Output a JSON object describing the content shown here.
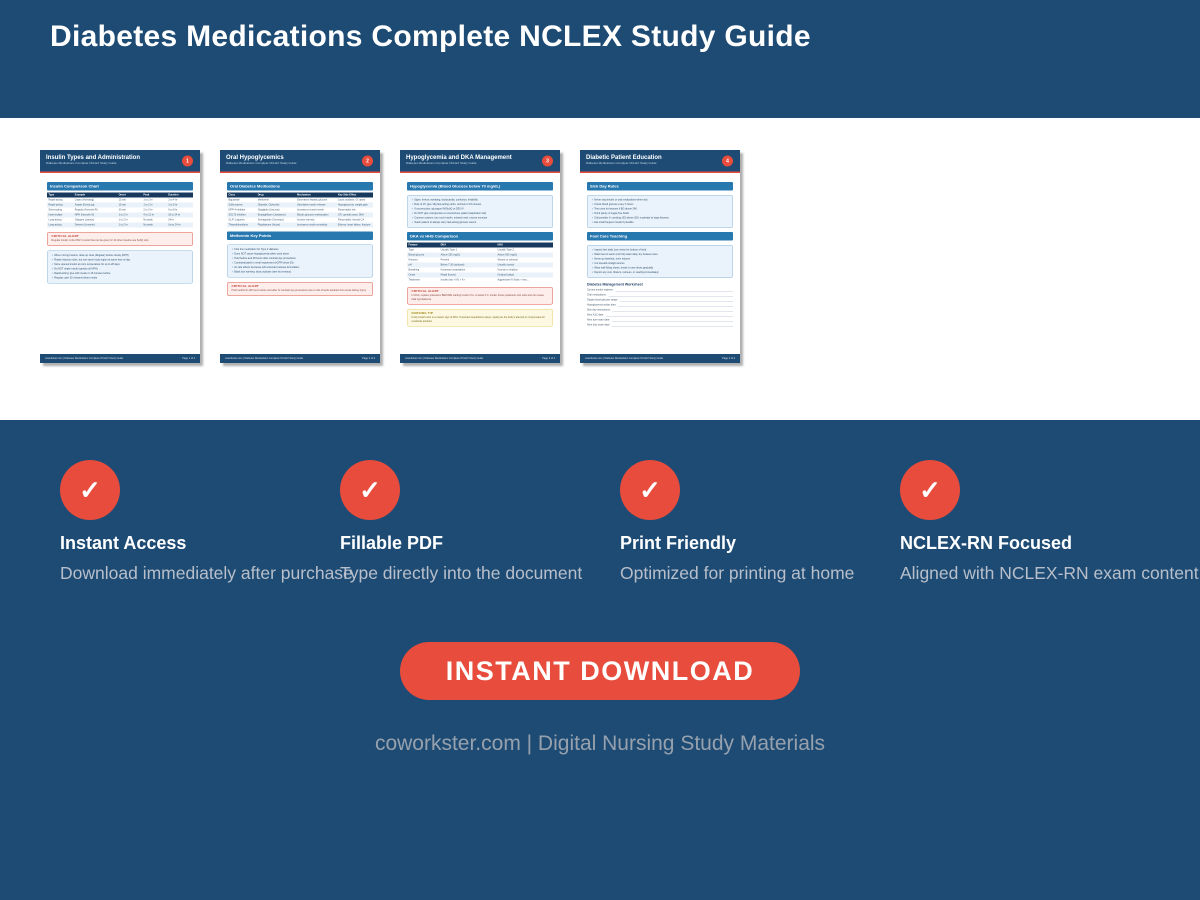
{
  "header": {
    "title": "Diabetes Medications Complete NCLEX Study Guide"
  },
  "colors": {
    "primary_blue": "#1d4b74",
    "section_blue": "#2878b0",
    "accent_red": "#e74c3c",
    "feature_desc_gray": "#b8bfca",
    "footer_gray": "#97a1ad"
  },
  "pages": [
    {
      "title": "Insulin Types and Administration",
      "subtitle": "Diabetes Medications Complete NCLEX Study Guide",
      "badge": "1",
      "footer_left": "coworkster.com | Diabetes Medications Complete NCLEX Study Guide",
      "footer_right": "Page 1 of 4",
      "blocks": [
        {
          "type": "bar",
          "text": "Insulin Comparison Chart"
        },
        {
          "type": "table",
          "headers": [
            "Type",
            "Example",
            "Onset",
            "Peak",
            "Duration"
          ],
          "rows": [
            [
              "Rapid-acting",
              "Lispro (Humalog)",
              "15 min",
              "1 to 2 hr",
              "3 to 4 hr"
            ],
            [
              "Rapid-acting",
              "Aspart (NovoLog)",
              "15 min",
              "1 to 2 hr",
              "3 to 5 hr"
            ],
            [
              "Short-acting",
              "Regular (Humulin R)",
              "30 min",
              "2 to 3 hr",
              "6 to 8 hr"
            ],
            [
              "Intermediate",
              "NPH (Humulin N)",
              "1 to 2 hr",
              "4 to 12 hr",
              "16 to 24 hr"
            ],
            [
              "Long-acting",
              "Glargine (Lantus)",
              "1 to 2 hr",
              "No peak",
              "24 hr"
            ],
            [
              "Long-acting",
              "Detemir (Levemir)",
              "1 to 2 hr",
              "No peak",
              "Up to 24 hr"
            ]
          ]
        },
        {
          "type": "alert",
          "title": "CRITICAL ALERT",
          "text": "Regular insulin is the ONLY insulin that can be given IV. All other insulins are SubQ only."
        },
        {
          "type": "bullets",
          "items": [
            "When mixing insulins: draw up clear (Regular) before cloudy (NPH)",
            "Rotate injection sites, but use same body region at same time of day",
            "Store opened insulin at room temperature for up to 28 days",
            "Do NOT shake insulin (gently roll NPH)",
            "Rapid-acting: give with meals or 15 minutes before",
            "Regular: give 30 minutes before meals"
          ]
        }
      ]
    },
    {
      "title": "Oral Hypoglycemics",
      "subtitle": "Diabetes Medications Complete NCLEX Study Guide",
      "badge": "2",
      "footer_left": "coworkster.com | Diabetes Medications Complete NCLEX Study Guide",
      "footer_right": "Page 2 of 4",
      "blocks": [
        {
          "type": "bar",
          "text": "Oral Diabetes Medications"
        },
        {
          "type": "table",
          "headers": [
            "Class",
            "Drug",
            "Mechanism",
            "Key Side Effect"
          ],
          "rows": [
            [
              "Biguanide",
              "Metformin",
              "Decreases hepatic glucose",
              "Lactic acidosis, GI upset"
            ],
            [
              "Sulfonylurea",
              "Glipizide, Glyburide",
              "Stimulates insulin release",
              "Hypoglycemia, weight gain"
            ],
            [
              "DPP-4 inhibitor",
              "Sitagliptin (Januvia)",
              "Increases incretin levels",
              "Pancreatitis risk"
            ],
            [
              "SGLT2 inhibitor",
              "Empagliflozin (Jardiance)",
              "Blocks glucose reabsorption",
              "UTI, genital yeast, DKA"
            ],
            [
              "GLP-1 agonist",
              "Semaglutide (Ozempic)",
              "Incretin mimetic",
              "Pancreatitis, thyroid CA"
            ],
            [
              "Thiazolidinedione",
              "Pioglitazone (Actos)",
              "Increases insulin sensitivity",
              "Edema, heart failure, fracture"
            ]
          ]
        },
        {
          "type": "bar",
          "text": "Metformin Key Points"
        },
        {
          "type": "bullets",
          "items": [
            "First line medication for Type 2 diabetes",
            "Does NOT cause hypoglycemia when used alone",
            "Hold before and 48 hours after contrast dye procedures",
            "Contraindicated in renal impairment (eGFR below 30)",
            "GI side effects decrease with extended release formulation",
            "Black box warning: lactic acidosis (rare but serious)"
          ]
        },
        {
          "type": "alert",
          "title": "CRITICAL ALERT",
          "text": "Hold metformin 48 hours before and after IV contrast dye procedures due to risk of lactic acidosis from acute kidney injury."
        }
      ]
    },
    {
      "title": "Hypoglycemia and DKA Management",
      "subtitle": "Diabetes Medications Complete NCLEX Study Guide",
      "badge": "3",
      "footer_left": "coworkster.com | Diabetes Medications Complete NCLEX Study Guide",
      "footer_right": "Page 3 of 4",
      "blocks": [
        {
          "type": "bar",
          "text": "Hypoglycemia (Blood Glucose below 70 mg/dL)"
        },
        {
          "type": "bullets",
          "items": [
            "Signs: tremor, sweating, tachycardia, confusion, irritability",
            "Rule of 15: give 15g fast-acting carbs, recheck in 15 minutes",
            "If unconscious: glucagon IM/SubQ or D50 IV",
            "Do NOT give oral glucose to unconscious patient (aspiration risk)",
            "Common causes: too much insulin, missed meal, excess exercise",
            "Teach patient to always carry fast-acting glucose source"
          ]
        },
        {
          "type": "bar",
          "text": "DKA vs HHS Comparison"
        },
        {
          "type": "table",
          "headers": [
            "Feature",
            "DKA",
            "HHS"
          ],
          "rows": [
            [
              "Type",
              "Usually Type 1",
              "Usually Type 2"
            ],
            [
              "Blood glucose",
              "Above 250 mg/dL",
              "Above 600 mg/dL"
            ],
            [
              "Ketones",
              "Present",
              "Absent or minimal"
            ],
            [
              "pH",
              "Below 7.30 (acidosis)",
              "Usually normal"
            ],
            [
              "Breathing",
              "Kussmaul respirations",
              "Normal or shallow"
            ],
            [
              "Onset",
              "Rapid (hours)",
              "Gradual (days)"
            ],
            [
              "Treatment",
              "Insulin drip + NS + K+",
              "Aggressive IV fluids + insu..."
            ]
          ]
        },
        {
          "type": "alert",
          "title": "CRITICAL ALERT",
          "text": "In DKA, replace potassium BEFORE starting insulin if K+ is below 3.3. Insulin drives potassium into cells and can cause fatal hypokalemia."
        },
        {
          "type": "tip",
          "title": "NURSING TIP",
          "text": "Fruity breath odor is a classic sign of DKA. Kussmaul respirations (deep, rapid) are the body's attempt to compensate for metabolic acidosis."
        }
      ]
    },
    {
      "title": "Diabetic Patient Education",
      "subtitle": "Diabetes Medications Complete NCLEX Study Guide",
      "badge": "4",
      "footer_left": "coworkster.com | Diabetes Medications Complete NCLEX Study Guide",
      "footer_right": "Page 4 of 4",
      "blocks": [
        {
          "type": "bar",
          "text": "Sick Day Rules"
        },
        {
          "type": "bullets",
          "items": [
            "Never stop insulin or oral medications when sick",
            "Check blood glucose every 4 hours",
            "Test urine for ketones if BG above 240",
            "Drink plenty of sugar-free fluids",
            "Call provider if: vomiting, BG above 300, moderate to large ketones",
            "Eat small frequent meals if possible"
          ]
        },
        {
          "type": "bar",
          "text": "Foot Care Teaching"
        },
        {
          "type": "bullets",
          "items": [
            "Inspect feet daily (use mirror for bottom of feet)",
            "Wash feet in warm (not hot) water daily, dry between toes",
            "Never go barefoot, even indoors",
            "Cut toenails straight across",
            "Wear well-fitting shoes; break in new shoes gradually",
            "Report any cuts, blisters, redness, or swelling immediately"
          ]
        },
        {
          "type": "worksheet",
          "title": "Diabetes Management Worksheet",
          "fields": [
            "Current insulin regimen:",
            "Oral medications:",
            "Target blood glucose range:",
            "Hypoglycemia action plan:",
            "Sick day instructions:",
            "Next A1C date:",
            "Next eye exam date:",
            "Next foot exam date:"
          ]
        }
      ]
    }
  ],
  "features": [
    {
      "icon": "checkmark-icon",
      "glyph": "✓",
      "title": "Instant Access",
      "description": "Download immediately after purchase"
    },
    {
      "icon": "checkmark-icon",
      "glyph": "✓",
      "title": "Fillable PDF",
      "description": "Type directly into the document"
    },
    {
      "icon": "checkmark-icon",
      "glyph": "✓",
      "title": "Print Friendly",
      "description": "Optimized for printing at home"
    },
    {
      "icon": "checkmark-icon",
      "glyph": "✓",
      "title": "NCLEX-RN Focused",
      "description": "Aligned with NCLEX-RN exam content"
    }
  ],
  "cta": {
    "label": "INSTANT DOWNLOAD"
  },
  "footer": {
    "text": "coworkster.com | Digital Nursing Study Materials"
  }
}
